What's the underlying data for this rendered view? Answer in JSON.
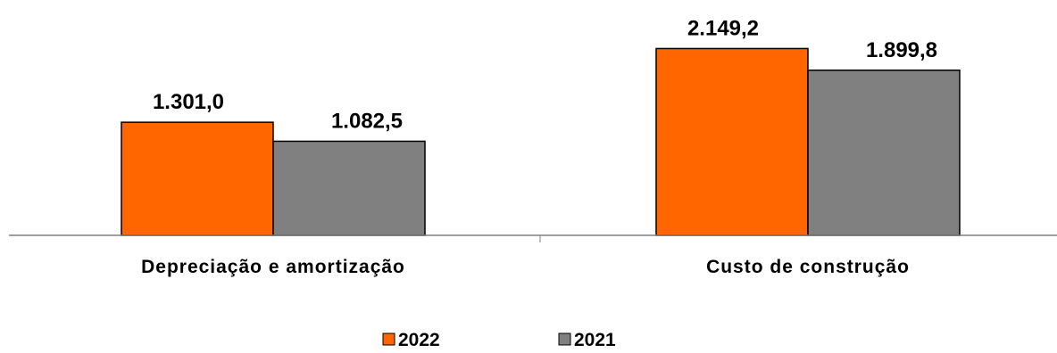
{
  "chart_data": {
    "type": "bar",
    "categories": [
      "Depreciação e amortização",
      "Custo de construção"
    ],
    "series": [
      {
        "name": "2022",
        "values": [
          1301.0,
          2149.2
        ],
        "labels": [
          "1.301,0",
          "2.149,2"
        ],
        "color": "#FF6600"
      },
      {
        "name": "2021",
        "values": [
          1082.5,
          1899.8
        ],
        "labels": [
          "1.082,5",
          "1.899,8"
        ],
        "color": "#808080"
      }
    ],
    "title": "",
    "xlabel": "",
    "ylabel": "",
    "ylim": [
      0,
      2400
    ],
    "grid": false,
    "legend": "bottom"
  }
}
